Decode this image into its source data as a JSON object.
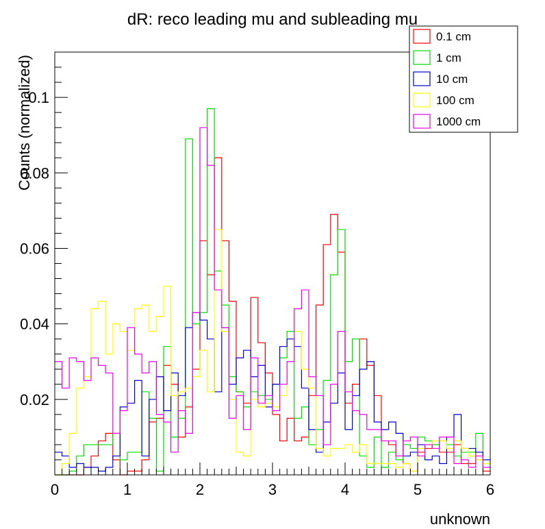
{
  "chart_data": {
    "type": "step",
    "title": "dR: reco leading mu and subleading mu",
    "xlabel": "unknown",
    "ylabel": "Counts (normalized)",
    "xlim": [
      0,
      6
    ],
    "ylim": [
      0,
      0.112
    ],
    "xticks": [
      "0",
      "1",
      "2",
      "3",
      "4",
      "5",
      "6"
    ],
    "yticks": [
      "0.02",
      "0.04",
      "0.06",
      "0.08",
      "0.1"
    ],
    "ytick_values": [
      0.02,
      0.04,
      0.06,
      0.08,
      0.1
    ],
    "bins": 60,
    "bin_width": 0.1,
    "legend_position": "top-right",
    "grid": false,
    "series": [
      {
        "name": "0.1 cm",
        "color": "#ff0000",
        "values": [
          0,
          0,
          0,
          0,
          0.002,
          0.005,
          0.009,
          0.011,
          0.004,
          0,
          0.001,
          0.001,
          0.004,
          0.014,
          0.015,
          0.029,
          0.024,
          0.01,
          0.018,
          0.028,
          0.062,
          0.053,
          0.084,
          0.062,
          0.046,
          0.022,
          0.019,
          0.047,
          0.035,
          0.027,
          0.016,
          0.009,
          0.015,
          0.009,
          0.01,
          0.021,
          0.045,
          0.061,
          0.069,
          0.059,
          0.019,
          0.024,
          0.036,
          0.029,
          0.021,
          0.009,
          0.008,
          0.005,
          0.003,
          0.001,
          0.006,
          0.007,
          0.008,
          0.006,
          0.006,
          0.008,
          0.003,
          0.003,
          0.006,
          0.001
        ]
      },
      {
        "name": "1 cm",
        "color": "#00dd00",
        "values": [
          0,
          0,
          0.001,
          0.005,
          0.008,
          0.008,
          0.008,
          0.008,
          0.011,
          0.004,
          0.006,
          0.006,
          0.022,
          0.015,
          0.001,
          0.034,
          0.01,
          0.015,
          0.089,
          0.04,
          0.043,
          0.097,
          0.054,
          0.045,
          0.026,
          0.022,
          0.018,
          0.022,
          0.021,
          0.02,
          0.024,
          0.031,
          0.038,
          0.015,
          0.018,
          0.008,
          0.012,
          0.025,
          0.053,
          0.065,
          0.03,
          0.036,
          0.005,
          0.002,
          0.01,
          0.002,
          0.006,
          0.004,
          0.008,
          0.007,
          0.01,
          0.009,
          0.008,
          0.009,
          0.008,
          0.005,
          0.006,
          0.006,
          0.011,
          0.003
        ]
      },
      {
        "name": "10 cm",
        "color": "#0000cc",
        "values": [
          0.006,
          0.005,
          0.002,
          0.003,
          0.002,
          0.002,
          0.001,
          0.002,
          0.005,
          0.018,
          0.019,
          0.025,
          0.005,
          0.02,
          0.026,
          0.017,
          0.027,
          0.021,
          0.039,
          0.043,
          0.041,
          0.036,
          0.022,
          0.039,
          0.024,
          0.031,
          0.033,
          0.026,
          0.029,
          0.018,
          0.024,
          0.034,
          0.036,
          0.034,
          0.023,
          0.012,
          0.006,
          0.014,
          0.019,
          0.027,
          0.012,
          0.021,
          0.028,
          0.03,
          0.014,
          0.012,
          0.014,
          0.011,
          0.005,
          0.006,
          0.008,
          0.004,
          0.005,
          0.003,
          0.01,
          0.016,
          0.007,
          0.007,
          0.006,
          0.004
        ]
      },
      {
        "name": "100 cm",
        "color": "#ffff00",
        "values": [
          0,
          0.003,
          0.011,
          0.023,
          0.026,
          0.044,
          0.046,
          0.032,
          0.04,
          0.038,
          0.033,
          0.044,
          0.045,
          0.038,
          0.042,
          0.05,
          0.021,
          0.022,
          0.023,
          0.026,
          0.033,
          0.022,
          0.065,
          0.038,
          0.02,
          0.006,
          0.005,
          0.02,
          0.018,
          0.019,
          0.018,
          0.021,
          0.03,
          0.038,
          0.028,
          0.023,
          0.007,
          0.005,
          0.007,
          0.007,
          0.008,
          0.006,
          0.008,
          0.003,
          0.003,
          0.003,
          0.003,
          0.002,
          0.003,
          0.001,
          0.007,
          0.008,
          0.009,
          0.009,
          0.007,
          0.009,
          0.007,
          0.005,
          0.004,
          0.003
        ]
      },
      {
        "name": "1000 cm",
        "color": "#ee00ee",
        "values": [
          0.03,
          0.023,
          0.031,
          0.03,
          0.025,
          0.031,
          0.029,
          0.027,
          0.011,
          0.017,
          0.039,
          0.032,
          0.027,
          0.03,
          0.016,
          0.014,
          0.006,
          0.017,
          0.011,
          0.043,
          0.092,
          0.082,
          0.049,
          0.039,
          0.015,
          0.021,
          0.012,
          0.031,
          0.019,
          0.021,
          0.017,
          0.024,
          0.03,
          0.044,
          0.049,
          0.026,
          0.021,
          0.008,
          0.024,
          0.038,
          0.022,
          0.017,
          0.016,
          0.012,
          0.012,
          0.009,
          0.009,
          0.005,
          0.009,
          0.01,
          0.005,
          0.008,
          0.007,
          0.01,
          0.01,
          0.003,
          0.004,
          0.002,
          0.005,
          0.002
        ]
      }
    ]
  }
}
